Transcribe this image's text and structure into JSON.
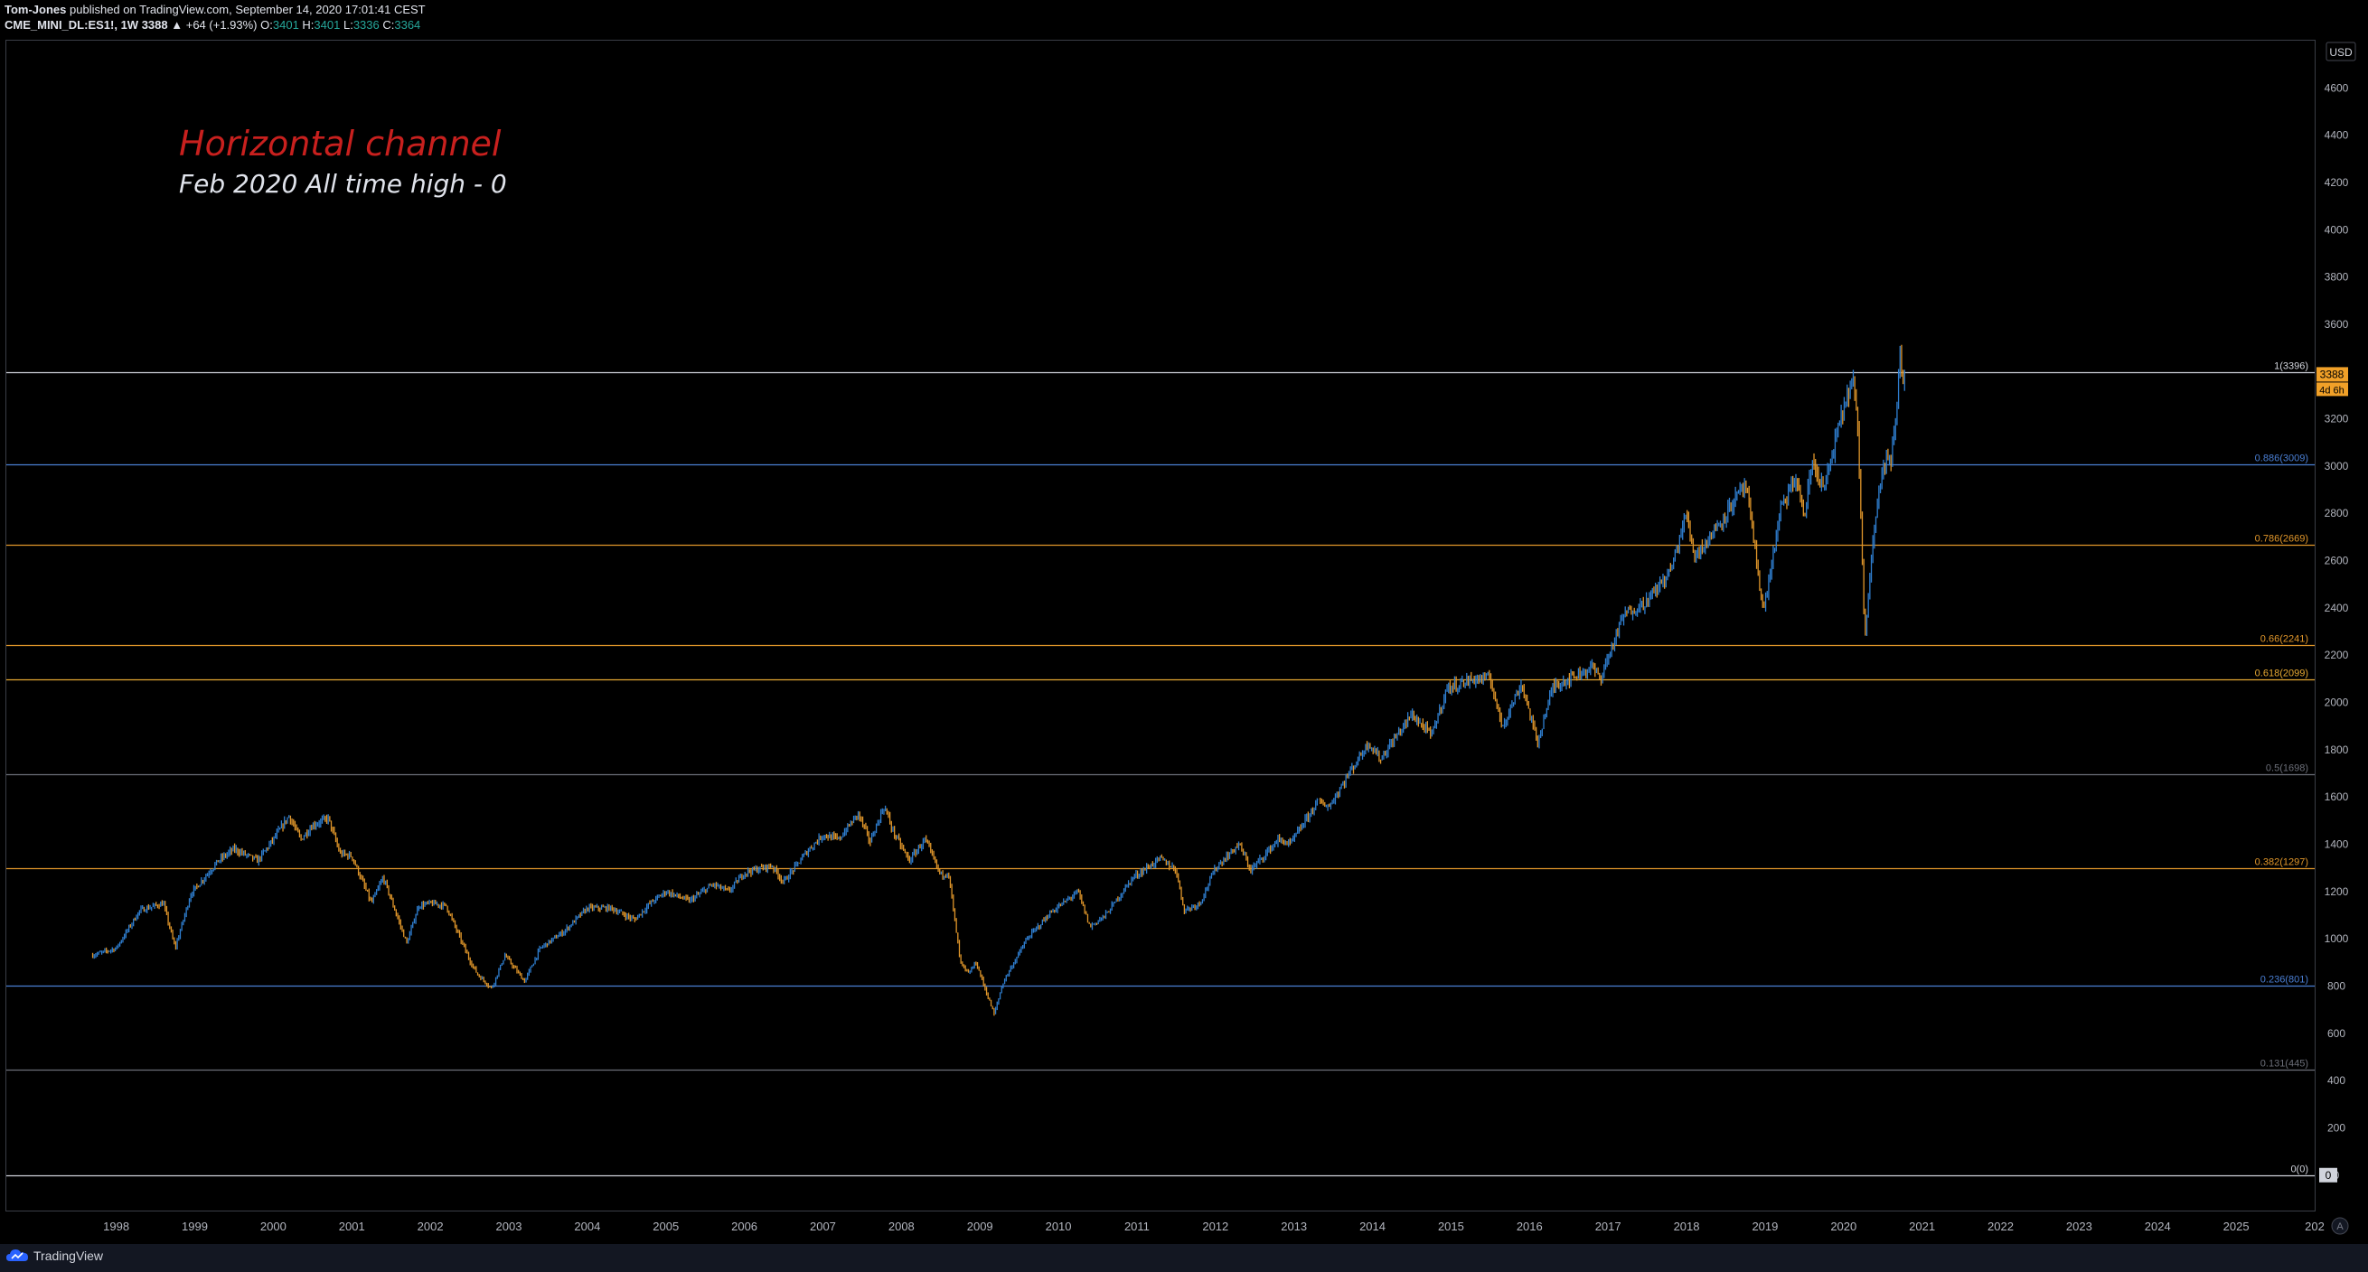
{
  "header": {
    "author": "Tom-Jones",
    "published_text": " published on TradingView.com, September 14, 2020 17:01:41 CEST",
    "symbol": "CME_MINI_DL:ES1!, 1W",
    "last": "3388",
    "change": "▲ +64 (+1.93%)",
    "o_label": "O:",
    "o": "3401",
    "h_label": "H:",
    "h": "3401",
    "l_label": "L:",
    "l": "3336",
    "c_label": "C:",
    "c": "3364"
  },
  "annotations": {
    "title": "Horizontal channel",
    "subtitle": "Feb 2020 All time high - 0"
  },
  "footer": {
    "brand": "TradingView"
  },
  "colors": {
    "bull": "#2f7fd1",
    "bear": "#e0962a",
    "title_red": "#c8201e",
    "price_tag": "#f0a028"
  },
  "chart_data": {
    "type": "candlestick",
    "interval": "1W",
    "currency": "USD",
    "ylim": [
      -150,
      4800
    ],
    "xlim": [
      1996.6,
      2026.0
    ],
    "y_ticks": [
      0,
      200,
      400,
      600,
      800,
      1000,
      1200,
      1400,
      1600,
      1800,
      2000,
      2200,
      2400,
      2600,
      2800,
      3000,
      3200,
      3400,
      3600,
      3800,
      4000,
      4200,
      4400,
      4600
    ],
    "x_ticks": [
      "1998",
      "1999",
      "2000",
      "2001",
      "2002",
      "2003",
      "2004",
      "2005",
      "2006",
      "2007",
      "2008",
      "2009",
      "2010",
      "2011",
      "2012",
      "2013",
      "2014",
      "2015",
      "2016",
      "2017",
      "2018",
      "2019",
      "2020",
      "2021",
      "2022",
      "2023",
      "2024",
      "2025",
      "202"
    ],
    "last_price": 3388,
    "countdown": "4d 6h",
    "fib_levels": [
      {
        "ratio": 1,
        "price": 3396,
        "label": "1(3396)",
        "color": "#d1d4dc"
      },
      {
        "ratio": 0.886,
        "price": 3009,
        "label": "0.886(3009)",
        "color": "#4a7fd4"
      },
      {
        "ratio": 0.786,
        "price": 2669,
        "label": "0.786(2669)",
        "color": "#e0962a"
      },
      {
        "ratio": 0.66,
        "price": 2241,
        "label": "0.66(2241)",
        "color": "#e0962a"
      },
      {
        "ratio": 0.618,
        "price": 2099,
        "label": "0.618(2099)",
        "color": "#e6a832"
      },
      {
        "ratio": 0.5,
        "price": 1698,
        "label": "0.5(1698)",
        "color": "#6b6e78"
      },
      {
        "ratio": 0.382,
        "price": 1297,
        "label": "0.382(1297)",
        "color": "#e0962a"
      },
      {
        "ratio": 0.236,
        "price": 801,
        "label": "0.236(801)",
        "color": "#4a7fd4"
      },
      {
        "ratio": 0.131,
        "price": 445,
        "label": "0.131(445)",
        "color": "#6b6e78"
      },
      {
        "ratio": 0,
        "price": 0,
        "label": "0(0)",
        "color": "#d1d4dc"
      }
    ],
    "price_path": [
      [
        1997.7,
        930
      ],
      [
        1998.0,
        960
      ],
      [
        1998.3,
        1120
      ],
      [
        1998.6,
        1150
      ],
      [
        1998.75,
        960
      ],
      [
        1998.95,
        1190
      ],
      [
        1999.3,
        1330
      ],
      [
        1999.5,
        1380
      ],
      [
        1999.8,
        1330
      ],
      [
        2000.0,
        1420
      ],
      [
        2000.2,
        1520
      ],
      [
        2000.35,
        1420
      ],
      [
        2000.5,
        1480
      ],
      [
        2000.7,
        1510
      ],
      [
        2000.85,
        1360
      ],
      [
        2001.0,
        1350
      ],
      [
        2001.25,
        1150
      ],
      [
        2001.4,
        1260
      ],
      [
        2001.7,
        980
      ],
      [
        2001.85,
        1140
      ],
      [
        2002.0,
        1150
      ],
      [
        2002.2,
        1140
      ],
      [
        2002.5,
        910
      ],
      [
        2002.6,
        850
      ],
      [
        2002.78,
        790
      ],
      [
        2002.95,
        930
      ],
      [
        2003.2,
        820
      ],
      [
        2003.4,
        960
      ],
      [
        2003.7,
        1030
      ],
      [
        2004.0,
        1130
      ],
      [
        2004.3,
        1130
      ],
      [
        2004.6,
        1080
      ],
      [
        2004.8,
        1150
      ],
      [
        2005.0,
        1200
      ],
      [
        2005.3,
        1160
      ],
      [
        2005.6,
        1230
      ],
      [
        2005.8,
        1200
      ],
      [
        2006.0,
        1280
      ],
      [
        2006.35,
        1310
      ],
      [
        2006.5,
        1240
      ],
      [
        2006.8,
        1370
      ],
      [
        2007.0,
        1440
      ],
      [
        2007.2,
        1420
      ],
      [
        2007.45,
        1530
      ],
      [
        2007.6,
        1410
      ],
      [
        2007.78,
        1560
      ],
      [
        2007.9,
        1450
      ],
      [
        2008.1,
        1330
      ],
      [
        2008.3,
        1420
      ],
      [
        2008.5,
        1270
      ],
      [
        2008.6,
        1280
      ],
      [
        2008.75,
        900
      ],
      [
        2008.85,
        850
      ],
      [
        2008.95,
        900
      ],
      [
        2009.18,
        680
      ],
      [
        2009.3,
        820
      ],
      [
        2009.6,
        1000
      ],
      [
        2009.9,
        1110
      ],
      [
        2010.25,
        1200
      ],
      [
        2010.4,
        1050
      ],
      [
        2010.6,
        1100
      ],
      [
        2010.95,
        1260
      ],
      [
        2011.3,
        1340
      ],
      [
        2011.5,
        1290
      ],
      [
        2011.6,
        1120
      ],
      [
        2011.8,
        1150
      ],
      [
        2012.0,
        1300
      ],
      [
        2012.3,
        1400
      ],
      [
        2012.45,
        1290
      ],
      [
        2012.8,
        1420
      ],
      [
        2012.95,
        1400
      ],
      [
        2013.3,
        1580
      ],
      [
        2013.45,
        1560
      ],
      [
        2013.7,
        1700
      ],
      [
        2013.95,
        1830
      ],
      [
        2014.1,
        1760
      ],
      [
        2014.5,
        1950
      ],
      [
        2014.75,
        1860
      ],
      [
        2014.95,
        2060
      ],
      [
        2015.3,
        2100
      ],
      [
        2015.5,
        2100
      ],
      [
        2015.65,
        1900
      ],
      [
        2015.9,
        2080
      ],
      [
        2016.1,
        1830
      ],
      [
        2016.3,
        2070
      ],
      [
        2016.5,
        2100
      ],
      [
        2016.8,
        2150
      ],
      [
        2016.9,
        2100
      ],
      [
        2017.2,
        2370
      ],
      [
        2017.5,
        2430
      ],
      [
        2017.8,
        2560
      ],
      [
        2018.0,
        2800
      ],
      [
        2018.1,
        2620
      ],
      [
        2018.3,
        2700
      ],
      [
        2018.6,
        2850
      ],
      [
        2018.75,
        2920
      ],
      [
        2018.85,
        2700
      ],
      [
        2018.98,
        2380
      ],
      [
        2019.2,
        2820
      ],
      [
        2019.4,
        2950
      ],
      [
        2019.5,
        2780
      ],
      [
        2019.6,
        3020
      ],
      [
        2019.75,
        2900
      ],
      [
        2020.0,
        3250
      ],
      [
        2020.12,
        3370
      ],
      [
        2020.18,
        3150
      ],
      [
        2020.23,
        2700
      ],
      [
        2020.27,
        2250
      ],
      [
        2020.35,
        2630
      ],
      [
        2020.45,
        2900
      ],
      [
        2020.55,
        3050
      ],
      [
        2020.6,
        3000
      ],
      [
        2020.68,
        3250
      ],
      [
        2020.72,
        3500
      ],
      [
        2020.75,
        3350
      ],
      [
        2020.79,
        3388
      ]
    ]
  }
}
